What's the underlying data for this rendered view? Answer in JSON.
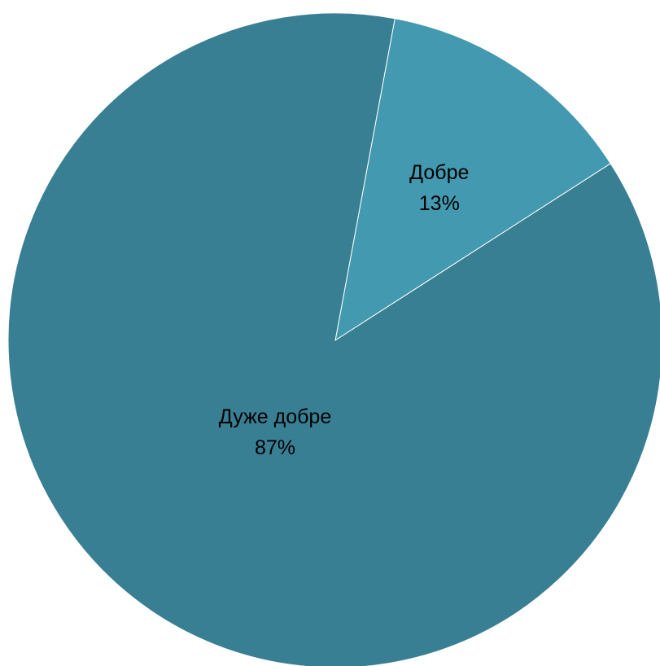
{
  "chart_data": {
    "type": "pie",
    "title": "",
    "start_angle_deg": 10.5,
    "direction": "clockwise",
    "slices": [
      {
        "name": "Добре",
        "value": 13,
        "label": "13%",
        "color": "#4399AF"
      },
      {
        "name": "Дуже добре",
        "value": 87,
        "label": "87%",
        "color": "#387F93"
      }
    ],
    "legend": "none",
    "data_labels": "inside"
  }
}
